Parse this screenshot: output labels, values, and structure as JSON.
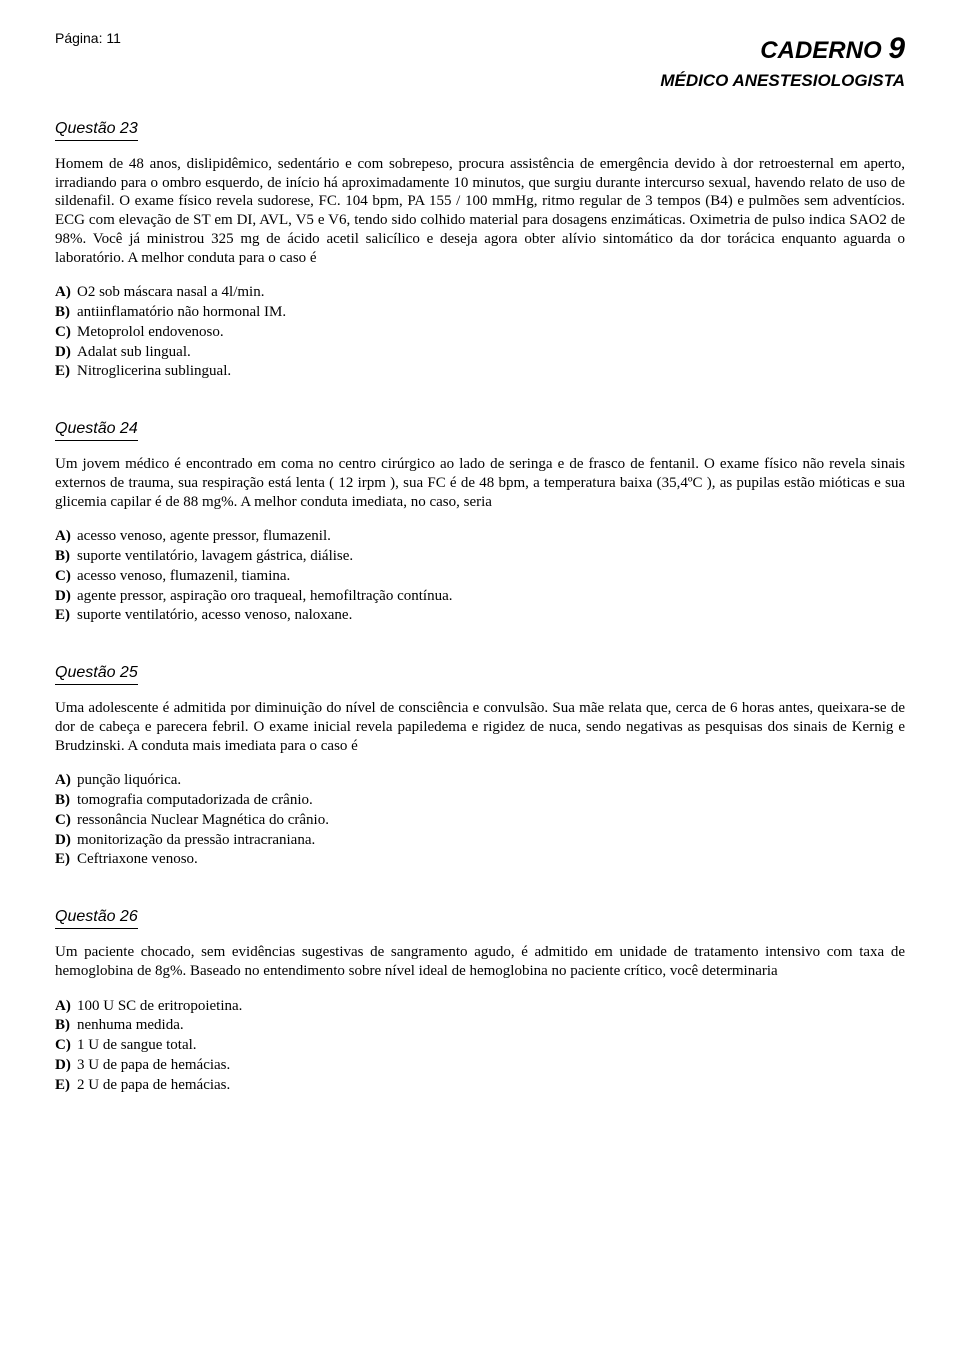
{
  "header": {
    "page_label": "Página: 11",
    "caderno_word": "CADERNO",
    "caderno_num": "9",
    "subtitle": "MÉDICO ANESTESIOLOGISTA"
  },
  "questions": [
    {
      "title": "Questão 23",
      "text": "Homem de 48 anos, dislipidêmico, sedentário e com sobrepeso, procura assistência de emergência devido à dor retroesternal em aperto, irradiando para o ombro esquerdo, de início há aproximadamente 10 minutos, que surgiu durante intercurso sexual, havendo relato de uso de sildenafil. O exame físico revela sudorese, FC. 104 bpm, PA 155 / 100 mmHg, ritmo regular de 3 tempos (B4) e pulmões sem adventícios. ECG com elevação de ST em DI, AVL, V5 e V6, tendo sido colhido material para dosagens enzimáticas. Oximetria de pulso indica SAO2 de 98%. Você já ministrou 325 mg de ácido acetil salicílico e deseja agora obter alívio sintomático da dor torácica enquanto aguarda o laboratório. A melhor conduta para o caso é",
      "options": [
        {
          "letter": "A)",
          "text": "O2 sob máscara nasal a 4l/min."
        },
        {
          "letter": "B)",
          "text": "antiinflamatório não hormonal IM."
        },
        {
          "letter": "C)",
          "text": "Metoprolol endovenoso."
        },
        {
          "letter": "D)",
          "text": "Adalat sub lingual."
        },
        {
          "letter": "E)",
          "text": "Nitroglicerina sublingual."
        }
      ]
    },
    {
      "title": "Questão 24",
      "text": "Um jovem médico é encontrado em coma no centro cirúrgico ao lado de seringa e de frasco de fentanil. O exame físico não revela sinais externos de trauma, sua respiração está lenta ( 12 irpm ), sua FC é de 48 bpm, a temperatura baixa (35,4ºC ), as pupilas estão mióticas e sua glicemia capilar é de 88 mg%. A melhor conduta imediata, no caso, seria",
      "options": [
        {
          "letter": "A)",
          "text": "acesso venoso, agente pressor, flumazenil."
        },
        {
          "letter": "B)",
          "text": "suporte ventilatório, lavagem gástrica, diálise."
        },
        {
          "letter": "C)",
          "text": "acesso venoso, flumazenil, tiamina."
        },
        {
          "letter": "D)",
          "text": "agente pressor, aspiração oro traqueal, hemofiltração contínua."
        },
        {
          "letter": "E)",
          "text": "suporte ventilatório, acesso venoso, naloxane."
        }
      ]
    },
    {
      "title": "Questão 25",
      "text": "Uma adolescente é admitida por diminuição do nível de consciência e convulsão. Sua mãe relata que, cerca de 6 horas antes, queixara-se de dor de cabeça e parecera febril. O exame inicial revela papiledema e rigidez de nuca, sendo negativas as pesquisas dos sinais de Kernig e Brudzinski. A conduta mais imediata para o caso é",
      "options": [
        {
          "letter": "A)",
          "text": "punção liquórica."
        },
        {
          "letter": "B)",
          "text": "tomografia computadorizada de crânio."
        },
        {
          "letter": "C)",
          "text": "ressonância Nuclear Magnética do crânio."
        },
        {
          "letter": "D)",
          "text": "monitorização da pressão intracraniana."
        },
        {
          "letter": "E)",
          "text": "Ceftriaxone venoso."
        }
      ]
    },
    {
      "title": "Questão 26",
      "text": "Um paciente chocado, sem evidências sugestivas de sangramento agudo, é admitido em unidade de tratamento intensivo com taxa de hemoglobina de 8g%. Baseado no entendimento sobre nível ideal de hemoglobina no paciente crítico, você determinaria",
      "options": [
        {
          "letter": "A)",
          "text": "100 U SC de eritropoietina."
        },
        {
          "letter": "B)",
          "text": "nenhuma medida."
        },
        {
          "letter": "C)",
          "text": "1 U de sangue total."
        },
        {
          "letter": "D)",
          "text": "3 U de papa de hemácias."
        },
        {
          "letter": "E)",
          "text": "2 U de papa de hemácias."
        }
      ]
    }
  ]
}
